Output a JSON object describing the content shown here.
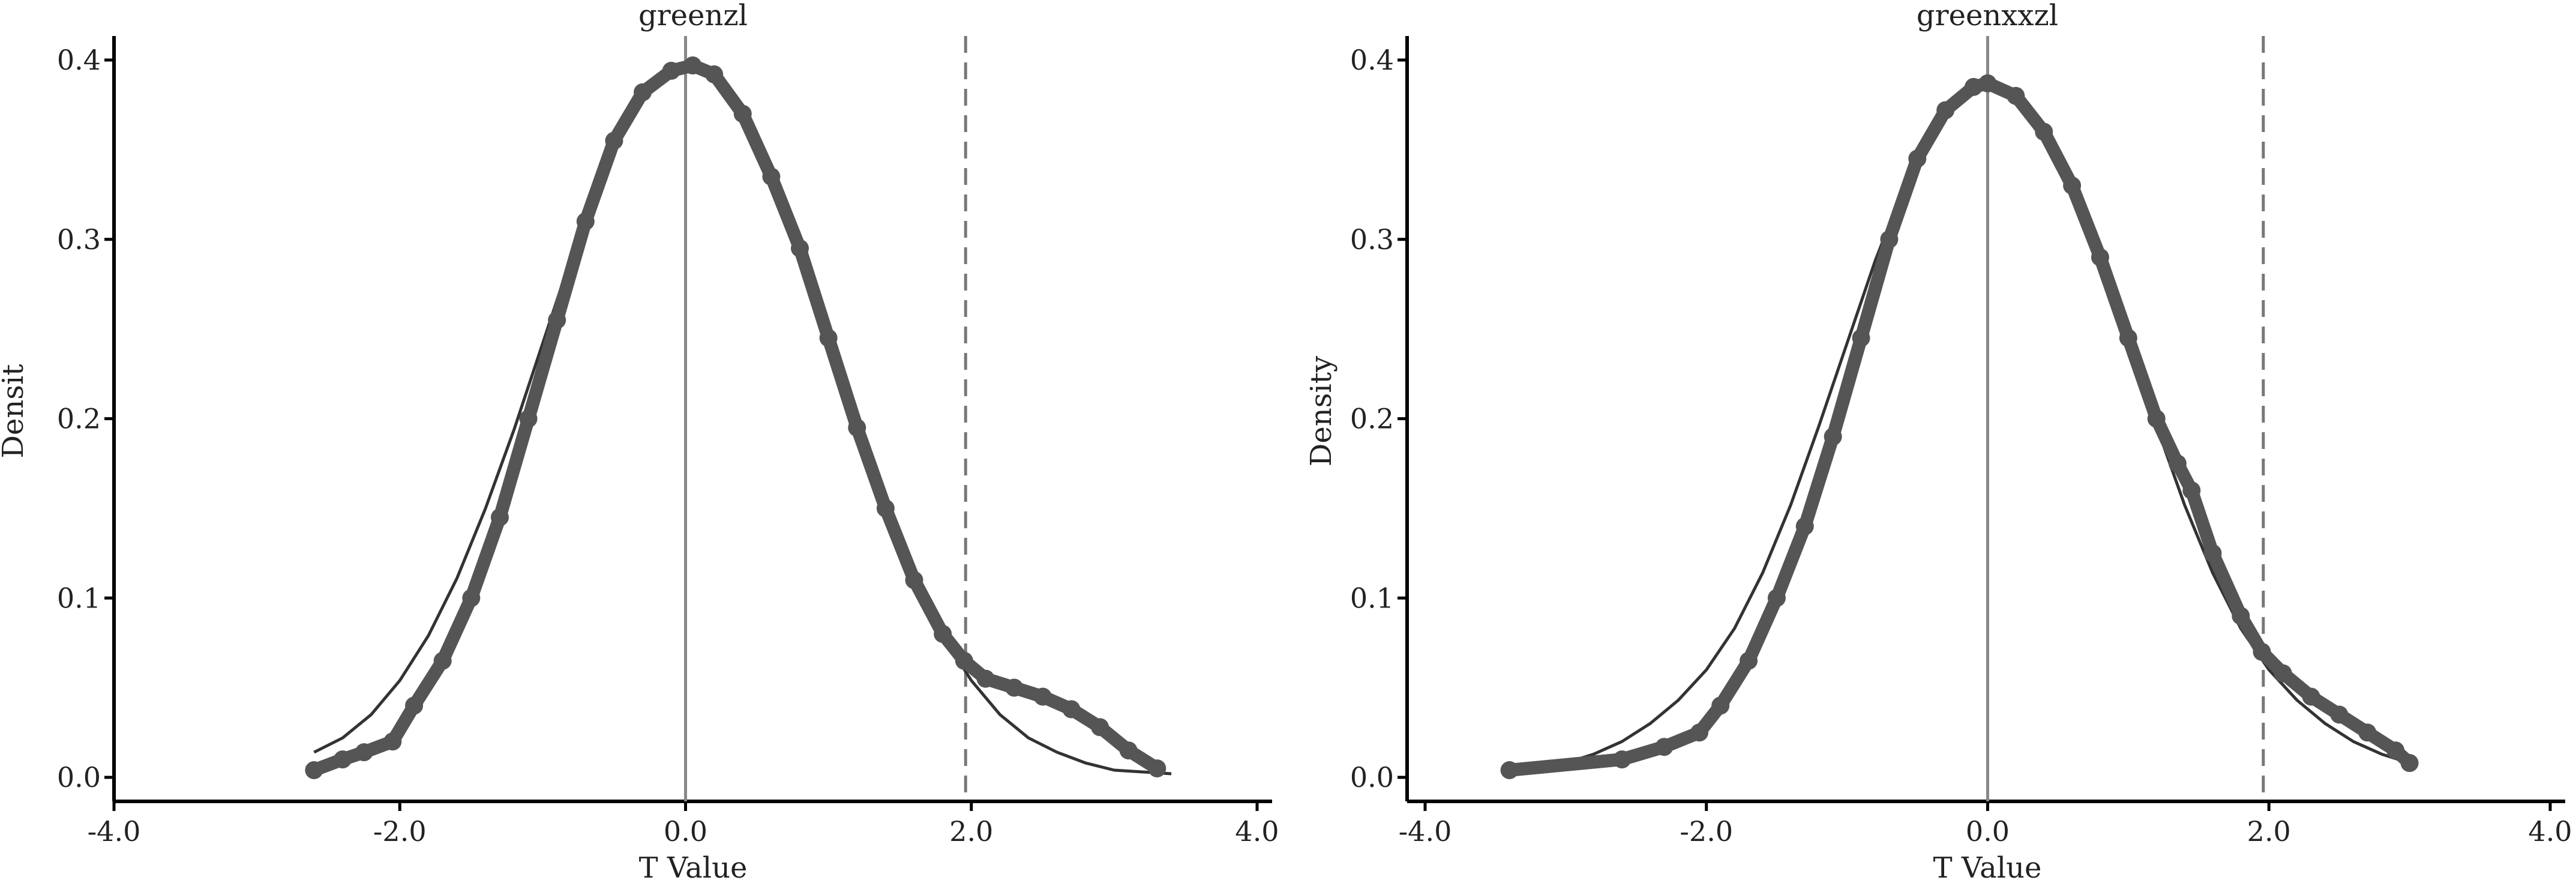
{
  "figure": {
    "background": "#ffffff",
    "axis_color": "#000000"
  },
  "chart_data": [
    {
      "type": "line",
      "title": "greenzl",
      "xlabel": "T Value",
      "ylabel": "Densit",
      "xlim": [
        -4.0,
        4.0
      ],
      "ylim": [
        0.0,
        0.4
      ],
      "x_ticks": [
        "-4.0",
        "-2.0",
        "0.0",
        "2.0",
        "4.0"
      ],
      "y_ticks": [
        "0.0",
        "0.1",
        "0.2",
        "0.3",
        "0.4"
      ],
      "grid": false,
      "legend": "none",
      "reference_lines": [
        {
          "x": 0.0,
          "style": "solid",
          "color": "#888888"
        },
        {
          "x": 1.96,
          "style": "dashed",
          "color": "#777777"
        }
      ],
      "series": [
        {
          "style": "thin-line",
          "color": "#333333",
          "x": [
            -2.6,
            -2.4,
            -2.2,
            -2.0,
            -1.8,
            -1.6,
            -1.4,
            -1.2,
            -1.0,
            -0.8,
            -0.6,
            -0.4,
            -0.2,
            0.0,
            0.2,
            0.4,
            0.6,
            0.8,
            1.0,
            1.2,
            1.4,
            1.6,
            1.8,
            2.0,
            2.2,
            2.4,
            2.6,
            2.8,
            3.0,
            3.2,
            3.4
          ],
          "values": [
            0.014,
            0.022,
            0.035,
            0.054,
            0.079,
            0.111,
            0.15,
            0.194,
            0.242,
            0.29,
            0.333,
            0.368,
            0.391,
            0.399,
            0.391,
            0.368,
            0.333,
            0.29,
            0.242,
            0.194,
            0.15,
            0.111,
            0.079,
            0.054,
            0.035,
            0.022,
            0.014,
            0.008,
            0.004,
            0.003,
            0.002
          ]
        },
        {
          "style": "thick-markers",
          "color": "#555555",
          "x": [
            -2.6,
            -2.4,
            -2.25,
            -2.05,
            -1.9,
            -1.7,
            -1.5,
            -1.3,
            -1.1,
            -0.9,
            -0.7,
            -0.5,
            -0.3,
            -0.1,
            0.05,
            0.2,
            0.4,
            0.6,
            0.8,
            1.0,
            1.2,
            1.4,
            1.6,
            1.8,
            1.95,
            2.1,
            2.3,
            2.5,
            2.7,
            2.9,
            3.1,
            3.3
          ],
          "values": [
            0.004,
            0.01,
            0.014,
            0.02,
            0.04,
            0.065,
            0.1,
            0.145,
            0.2,
            0.255,
            0.31,
            0.355,
            0.382,
            0.394,
            0.397,
            0.392,
            0.37,
            0.335,
            0.295,
            0.245,
            0.195,
            0.15,
            0.11,
            0.08,
            0.065,
            0.055,
            0.05,
            0.045,
            0.038,
            0.028,
            0.015,
            0.005
          ]
        }
      ]
    },
    {
      "type": "line",
      "title": "greenxxzl",
      "xlabel": "T Value",
      "ylabel": "Density",
      "xlim": [
        -4.0,
        4.0
      ],
      "ylim": [
        0.0,
        0.4
      ],
      "x_ticks": [
        "-4.0",
        "-2.0",
        "0.0",
        "2.0",
        "4.0"
      ],
      "y_ticks": [
        "0.0",
        "0.1",
        "0.2",
        "0.3",
        "0.4"
      ],
      "grid": false,
      "legend": "none",
      "reference_lines": [
        {
          "x": 0.0,
          "style": "solid",
          "color": "#888888"
        },
        {
          "x": 1.96,
          "style": "dashed",
          "color": "#777777"
        }
      ],
      "series": [
        {
          "style": "thin-line",
          "color": "#333333",
          "x": [
            -3.4,
            -3.2,
            -3.0,
            -2.8,
            -2.6,
            -2.4,
            -2.2,
            -2.0,
            -1.8,
            -1.6,
            -1.4,
            -1.2,
            -1.0,
            -0.8,
            -0.6,
            -0.4,
            -0.2,
            0.0,
            0.2,
            0.4,
            0.6,
            0.8,
            1.0,
            1.2,
            1.4,
            1.6,
            1.8,
            2.0,
            2.2,
            2.4,
            2.6,
            2.8,
            3.0
          ],
          "values": [
            0.005,
            0.006,
            0.008,
            0.013,
            0.02,
            0.03,
            0.043,
            0.06,
            0.083,
            0.114,
            0.152,
            0.196,
            0.242,
            0.288,
            0.328,
            0.36,
            0.38,
            0.387,
            0.38,
            0.36,
            0.328,
            0.288,
            0.242,
            0.196,
            0.152,
            0.114,
            0.083,
            0.06,
            0.043,
            0.03,
            0.02,
            0.013,
            0.008
          ]
        },
        {
          "style": "thick-markers",
          "color": "#555555",
          "x": [
            -3.4,
            -2.6,
            -2.3,
            -2.05,
            -1.9,
            -1.7,
            -1.5,
            -1.3,
            -1.1,
            -0.9,
            -0.7,
            -0.5,
            -0.3,
            -0.1,
            0.0,
            0.2,
            0.4,
            0.6,
            0.8,
            1.0,
            1.2,
            1.35,
            1.45,
            1.6,
            1.8,
            1.95,
            2.1,
            2.3,
            2.5,
            2.7,
            2.9,
            3.0
          ],
          "values": [
            0.004,
            0.01,
            0.017,
            0.025,
            0.04,
            0.065,
            0.1,
            0.14,
            0.19,
            0.245,
            0.3,
            0.345,
            0.372,
            0.385,
            0.387,
            0.38,
            0.36,
            0.33,
            0.29,
            0.245,
            0.2,
            0.175,
            0.16,
            0.125,
            0.09,
            0.07,
            0.058,
            0.045,
            0.035,
            0.025,
            0.015,
            0.008
          ]
        }
      ]
    }
  ]
}
